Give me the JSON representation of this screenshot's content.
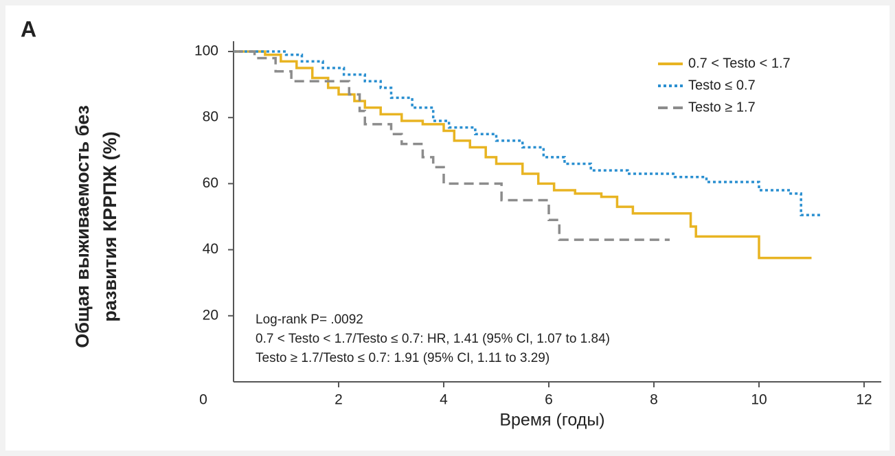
{
  "chart_data": {
    "type": "step",
    "panel_label": "A",
    "y_label": [
      "Общая выживаемость без",
      "развития КРРПЖ (%)"
    ],
    "x_label": "Время (годы)",
    "xlim": [
      0,
      12.3
    ],
    "ylim": [
      0,
      100
    ],
    "xticks": [
      2,
      4,
      6,
      8,
      10,
      12
    ],
    "yticks": [
      0,
      20,
      40,
      60,
      80,
      100
    ],
    "annotations": [
      "Log-rank P= .0092",
      "0.7 < Testo < 1.7/Testo ≤ 0.7: HR, 1.41 (95% CI, 1.07 to 1.84)",
      "Testo ≥ 1.7/Testo ≤ 0.7: 1.91 (95% CI, 1.11 to 3.29)"
    ],
    "legend": "upper right",
    "series": [
      {
        "name": "0.7 < Testo < 1.7",
        "color": "#e8b422",
        "dash": "solid",
        "x": [
          0,
          0.6,
          0.9,
          1.2,
          1.5,
          1.8,
          2.0,
          2.3,
          2.5,
          2.8,
          3.2,
          3.6,
          4.0,
          4.2,
          4.5,
          4.8,
          5.0,
          5.5,
          5.8,
          6.1,
          6.5,
          7.0,
          7.3,
          7.6,
          8.1,
          8.7,
          8.8,
          10.0,
          11.0
        ],
        "values": [
          100,
          99,
          97,
          95,
          92,
          89,
          87,
          85,
          83,
          81,
          79,
          78,
          76,
          73,
          71,
          68,
          66,
          63,
          60,
          58,
          57,
          56,
          53,
          51,
          51,
          47,
          44,
          37.5,
          37.5
        ]
      },
      {
        "name": "Testo ≤ 0.7",
        "color": "#2a8fd0",
        "dash": "dotted",
        "x": [
          0,
          0.8,
          1.0,
          1.3,
          1.7,
          2.1,
          2.5,
          2.8,
          3.0,
          3.4,
          3.8,
          4.1,
          4.6,
          5.0,
          5.5,
          5.9,
          6.3,
          6.8,
          7.5,
          8.4,
          9.0,
          10.0,
          10.6,
          10.8,
          11.2
        ],
        "values": [
          100,
          100,
          99,
          97,
          95,
          93,
          91,
          89,
          86,
          83,
          79,
          77,
          75,
          73,
          71,
          68,
          66,
          64,
          63,
          62,
          60.5,
          58,
          57,
          50.5,
          50.5
        ]
      },
      {
        "name": "Testo ≥ 1.7",
        "color": "#8c8c8c",
        "dash": "dashed",
        "x": [
          0,
          0.4,
          0.8,
          1.1,
          1.9,
          2.2,
          2.4,
          2.5,
          3.0,
          3.2,
          3.6,
          3.8,
          4.0,
          5.1,
          6.0,
          6.2,
          8.3
        ],
        "values": [
          100,
          98,
          94,
          91,
          91,
          87,
          82,
          78,
          75,
          72,
          68,
          65,
          60,
          55,
          49,
          43,
          43
        ]
      }
    ]
  }
}
